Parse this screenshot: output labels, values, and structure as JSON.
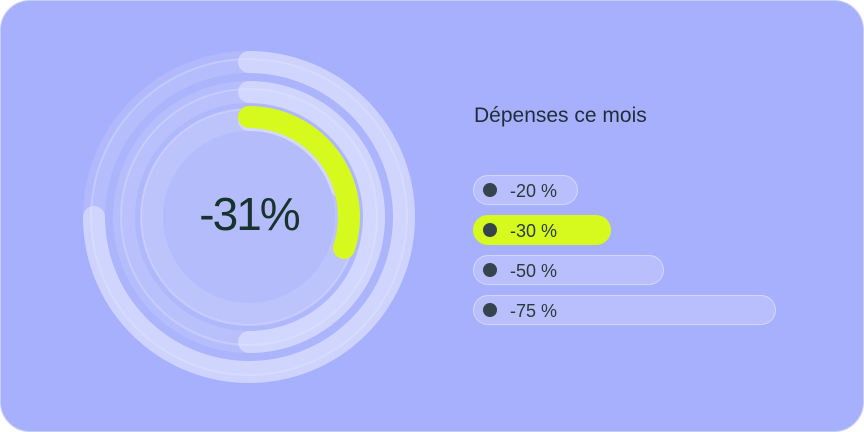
{
  "chart_data": {
    "type": "radial-bar",
    "title": "Dépenses ce mois",
    "center_label": "-31%",
    "series": [
      {
        "name": "-20 %",
        "value": 20
      },
      {
        "name": "-30 %",
        "value": 30,
        "active": true
      },
      {
        "name": "-50 %",
        "value": 50
      },
      {
        "name": "-75 %",
        "value": 75
      }
    ],
    "legend_placement": "right",
    "colors": {
      "background": "#a7b0fc",
      "accent": "#d6fa1e",
      "text": "#18322e",
      "dot": "#37444d"
    }
  }
}
